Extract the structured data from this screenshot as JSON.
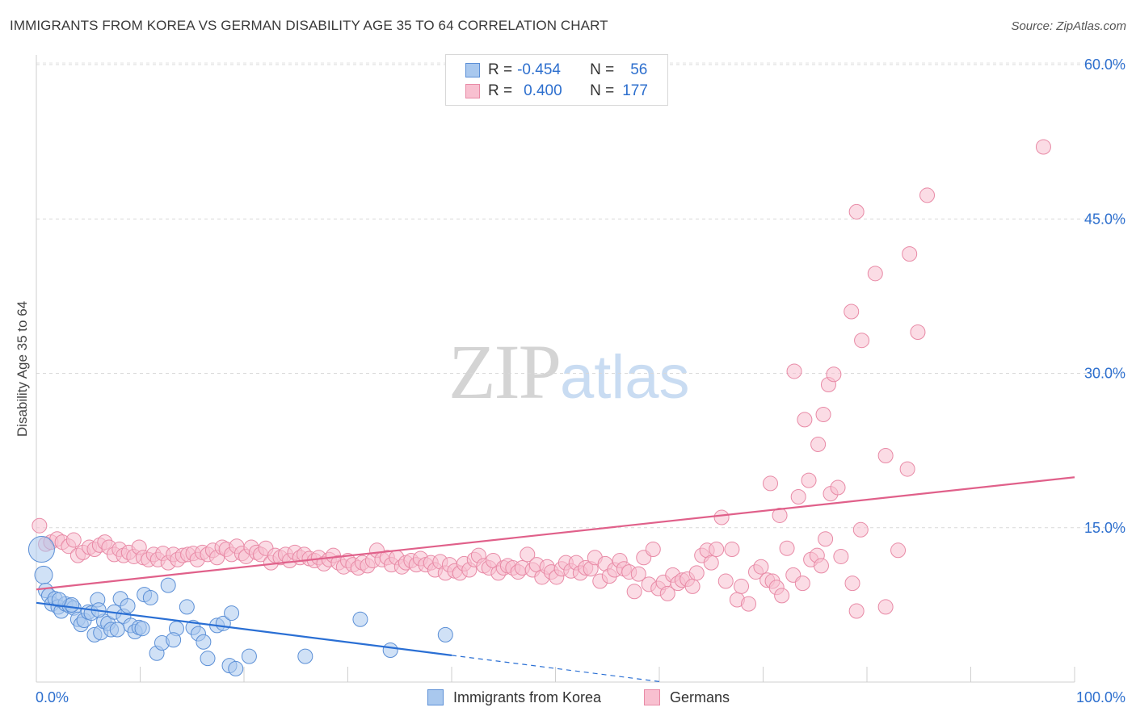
{
  "title": "IMMIGRANTS FROM KOREA VS GERMAN DISABILITY AGE 35 TO 64 CORRELATION CHART",
  "source": "Source: ZipAtlas.com",
  "watermark": {
    "zip": "ZIP",
    "atlas": "atlas"
  },
  "legend": {
    "rows": [
      {
        "r_label": "R =",
        "r_value": "-0.454",
        "n_label": "N =",
        "n_value": "56",
        "color": "#a9c8ee",
        "border": "#5b8fd6"
      },
      {
        "r_label": "R =",
        "r_value": "0.400",
        "n_label": "N =",
        "n_value": "177",
        "color": "#f8c0d0",
        "border": "#e88aa6"
      }
    ]
  },
  "bottom_legend": [
    {
      "label": "Immigrants from Korea",
      "color": "#a9c8ee",
      "border": "#5b8fd6"
    },
    {
      "label": "Germans",
      "color": "#f8c0d0",
      "border": "#e88aa6"
    }
  ],
  "chart_data": {
    "type": "scatter",
    "title": "IMMIGRANTS FROM KOREA VS GERMAN DISABILITY AGE 35 TO 64 CORRELATION CHART",
    "ylabel": "Disability Age 35 to 64",
    "xlabel": "",
    "xlim": [
      0,
      100
    ],
    "ylim": [
      0,
      60
    ],
    "x_tick_labels": [
      "0.0%",
      "100.0%"
    ],
    "y_ticks": [
      15,
      30,
      45,
      60
    ],
    "y_tick_labels": [
      "15.0%",
      "30.0%",
      "45.0%",
      "60.0%"
    ],
    "grid": true,
    "accent_blue": "#2d6fce",
    "series": [
      {
        "name": "Immigrants from Korea",
        "color": "#a9c8ee",
        "stroke": "#5b8fd6",
        "trend_color": "#2a6fd4",
        "trend": {
          "x0": 0,
          "y0": 7.7,
          "x1": 40,
          "y1": 2.6,
          "dash_to_x": 60
        },
        "points": [
          [
            0.5,
            12.9
          ],
          [
            0.7,
            10.4
          ],
          [
            0.9,
            8.9
          ],
          [
            1.2,
            8.4
          ],
          [
            1.5,
            7.6
          ],
          [
            1.8,
            8.1
          ],
          [
            2.1,
            7.3
          ],
          [
            2.4,
            6.9
          ],
          [
            2.8,
            7.6
          ],
          [
            3.2,
            7.4
          ],
          [
            3.6,
            7.2
          ],
          [
            4.0,
            6.1
          ],
          [
            4.3,
            5.6
          ],
          [
            4.6,
            6.0
          ],
          [
            5.0,
            6.8
          ],
          [
            5.3,
            6.7
          ],
          [
            5.6,
            4.6
          ],
          [
            5.9,
            8.0
          ],
          [
            6.2,
            4.8
          ],
          [
            6.5,
            5.9
          ],
          [
            6.9,
            5.7
          ],
          [
            7.2,
            5.1
          ],
          [
            7.5,
            6.8
          ],
          [
            7.8,
            5.1
          ],
          [
            8.1,
            8.1
          ],
          [
            8.4,
            6.4
          ],
          [
            8.8,
            7.4
          ],
          [
            9.1,
            5.5
          ],
          [
            9.5,
            4.9
          ],
          [
            9.9,
            5.3
          ],
          [
            10.4,
            8.5
          ],
          [
            11.0,
            8.2
          ],
          [
            11.6,
            2.8
          ],
          [
            12.1,
            3.8
          ],
          [
            12.7,
            9.4
          ],
          [
            13.5,
            5.2
          ],
          [
            14.5,
            7.3
          ],
          [
            15.1,
            5.3
          ],
          [
            15.6,
            4.7
          ],
          [
            16.1,
            3.9
          ],
          [
            16.5,
            2.3
          ],
          [
            17.4,
            5.5
          ],
          [
            18.0,
            5.7
          ],
          [
            18.6,
            1.6
          ],
          [
            19.2,
            1.3
          ],
          [
            18.8,
            6.7
          ],
          [
            20.5,
            2.5
          ],
          [
            10.2,
            5.2
          ],
          [
            13.2,
            4.1
          ],
          [
            3.4,
            7.5
          ],
          [
            2.2,
            8.0
          ],
          [
            6.0,
            7.0
          ],
          [
            25.9,
            2.5
          ],
          [
            31.2,
            6.1
          ],
          [
            34.1,
            3.1
          ],
          [
            39.4,
            4.6
          ]
        ]
      },
      {
        "name": "Germans",
        "color": "#f8c0d0",
        "stroke": "#e88aa6",
        "trend_color": "#e0608a",
        "trend": {
          "x0": 0,
          "y0": 9.0,
          "x1": 100,
          "y1": 19.9
        },
        "points": [
          [
            0.3,
            15.2
          ],
          [
            0.9,
            13.4
          ],
          [
            1.4,
            13.6
          ],
          [
            2.0,
            13.9
          ],
          [
            2.5,
            13.6
          ],
          [
            3.1,
            13.2
          ],
          [
            3.6,
            13.8
          ],
          [
            4.0,
            12.3
          ],
          [
            4.5,
            12.6
          ],
          [
            5.1,
            13.1
          ],
          [
            5.6,
            12.9
          ],
          [
            6.1,
            13.3
          ],
          [
            6.6,
            13.6
          ],
          [
            7.0,
            13.1
          ],
          [
            7.5,
            12.4
          ],
          [
            8.0,
            12.9
          ],
          [
            8.4,
            12.3
          ],
          [
            8.9,
            12.6
          ],
          [
            9.4,
            12.2
          ],
          [
            9.9,
            13.1
          ],
          [
            10.3,
            12.1
          ],
          [
            10.8,
            11.9
          ],
          [
            11.3,
            12.4
          ],
          [
            11.7,
            11.9
          ],
          [
            12.2,
            12.5
          ],
          [
            12.7,
            11.6
          ],
          [
            13.2,
            12.4
          ],
          [
            13.6,
            11.9
          ],
          [
            14.1,
            12.3
          ],
          [
            14.6,
            12.4
          ],
          [
            15.1,
            12.5
          ],
          [
            15.5,
            11.9
          ],
          [
            16.0,
            12.6
          ],
          [
            16.5,
            12.4
          ],
          [
            17.0,
            12.8
          ],
          [
            17.4,
            12.1
          ],
          [
            17.9,
            13.1
          ],
          [
            18.3,
            12.9
          ],
          [
            18.8,
            12.4
          ],
          [
            19.3,
            13.2
          ],
          [
            19.8,
            12.5
          ],
          [
            20.2,
            12.2
          ],
          [
            20.7,
            13.1
          ],
          [
            21.2,
            12.6
          ],
          [
            21.6,
            12.4
          ],
          [
            22.1,
            13.0
          ],
          [
            22.6,
            11.6
          ],
          [
            23.0,
            12.3
          ],
          [
            23.5,
            12.1
          ],
          [
            24.0,
            12.4
          ],
          [
            24.4,
            11.8
          ],
          [
            24.9,
            12.6
          ],
          [
            25.4,
            12.1
          ],
          [
            25.8,
            12.4
          ],
          [
            26.3,
            12.0
          ],
          [
            26.8,
            11.8
          ],
          [
            27.2,
            12.1
          ],
          [
            27.7,
            11.5
          ],
          [
            28.2,
            11.9
          ],
          [
            28.6,
            12.3
          ],
          [
            29.1,
            11.6
          ],
          [
            29.6,
            11.2
          ],
          [
            30.0,
            11.8
          ],
          [
            30.5,
            11.4
          ],
          [
            31.0,
            11.1
          ],
          [
            31.4,
            11.6
          ],
          [
            31.9,
            11.3
          ],
          [
            32.4,
            11.8
          ],
          [
            32.8,
            12.8
          ],
          [
            33.3,
            11.9
          ],
          [
            33.8,
            12.1
          ],
          [
            34.2,
            11.4
          ],
          [
            34.7,
            12.1
          ],
          [
            35.2,
            11.2
          ],
          [
            35.6,
            11.6
          ],
          [
            36.1,
            11.8
          ],
          [
            36.6,
            11.4
          ],
          [
            37.0,
            12.0
          ],
          [
            37.5,
            11.4
          ],
          [
            38.0,
            11.6
          ],
          [
            38.4,
            10.9
          ],
          [
            38.9,
            11.7
          ],
          [
            39.4,
            10.6
          ],
          [
            39.8,
            11.4
          ],
          [
            40.3,
            10.8
          ],
          [
            40.8,
            10.6
          ],
          [
            41.2,
            11.5
          ],
          [
            41.7,
            10.9
          ],
          [
            42.2,
            11.9
          ],
          [
            42.6,
            12.3
          ],
          [
            43.1,
            11.3
          ],
          [
            43.6,
            11.1
          ],
          [
            44.0,
            11.8
          ],
          [
            44.5,
            10.6
          ],
          [
            45.0,
            11.1
          ],
          [
            45.4,
            11.3
          ],
          [
            45.9,
            11.1
          ],
          [
            46.4,
            10.7
          ],
          [
            46.8,
            11.1
          ],
          [
            47.3,
            12.4
          ],
          [
            47.8,
            10.9
          ],
          [
            48.2,
            11.4
          ],
          [
            48.7,
            10.2
          ],
          [
            49.2,
            11.2
          ],
          [
            49.6,
            10.7
          ],
          [
            50.1,
            10.2
          ],
          [
            50.6,
            11.0
          ],
          [
            51.0,
            11.6
          ],
          [
            51.5,
            10.8
          ],
          [
            52.0,
            11.6
          ],
          [
            52.4,
            10.6
          ],
          [
            52.9,
            11.1
          ],
          [
            53.4,
            11.0
          ],
          [
            53.8,
            12.1
          ],
          [
            54.3,
            9.8
          ],
          [
            54.8,
            11.5
          ],
          [
            55.2,
            10.3
          ],
          [
            55.7,
            10.9
          ],
          [
            56.2,
            11.8
          ],
          [
            56.6,
            11.0
          ],
          [
            57.1,
            10.7
          ],
          [
            57.6,
            8.8
          ],
          [
            58.0,
            10.5
          ],
          [
            58.5,
            12.1
          ],
          [
            59.0,
            9.5
          ],
          [
            59.4,
            12.9
          ],
          [
            59.9,
            9.1
          ],
          [
            60.4,
            9.7
          ],
          [
            60.8,
            8.6
          ],
          [
            61.3,
            10.4
          ],
          [
            61.8,
            9.6
          ],
          [
            62.2,
            9.9
          ],
          [
            62.7,
            10.0
          ],
          [
            63.2,
            9.3
          ],
          [
            63.6,
            10.6
          ],
          [
            64.1,
            12.3
          ],
          [
            64.6,
            12.8
          ],
          [
            65.0,
            11.6
          ],
          [
            65.5,
            12.9
          ],
          [
            66.0,
            16.0
          ],
          [
            66.4,
            9.8
          ],
          [
            67.0,
            12.9
          ],
          [
            67.5,
            8.0
          ],
          [
            67.9,
            9.3
          ],
          [
            68.6,
            7.6
          ],
          [
            69.3,
            10.7
          ],
          [
            69.8,
            11.2
          ],
          [
            70.4,
            9.9
          ],
          [
            70.7,
            19.3
          ],
          [
            70.9,
            9.8
          ],
          [
            71.3,
            9.2
          ],
          [
            71.8,
            8.4
          ],
          [
            71.6,
            16.2
          ],
          [
            72.3,
            13.0
          ],
          [
            72.9,
            10.4
          ],
          [
            73.4,
            18.0
          ],
          [
            73.8,
            9.6
          ],
          [
            74.4,
            19.6
          ],
          [
            74.6,
            11.9
          ],
          [
            75.2,
            12.3
          ],
          [
            75.6,
            11.3
          ],
          [
            76.0,
            13.9
          ],
          [
            76.5,
            18.3
          ],
          [
            77.2,
            18.9
          ],
          [
            77.5,
            12.2
          ],
          [
            78.6,
            9.6
          ],
          [
            79.0,
            6.9
          ],
          [
            79.4,
            14.8
          ],
          [
            81.8,
            7.3
          ],
          [
            83.0,
            12.8
          ],
          [
            81.8,
            22.0
          ],
          [
            83.9,
            20.7
          ],
          [
            74.0,
            25.5
          ],
          [
            75.3,
            23.1
          ],
          [
            75.8,
            26.0
          ],
          [
            76.3,
            28.9
          ],
          [
            76.8,
            29.9
          ],
          [
            73.0,
            30.2
          ],
          [
            78.5,
            36.0
          ],
          [
            79.5,
            33.2
          ],
          [
            80.8,
            39.7
          ],
          [
            84.1,
            41.6
          ],
          [
            84.9,
            34.0
          ],
          [
            79.0,
            45.7
          ],
          [
            85.8,
            47.3
          ],
          [
            97.0,
            52.0
          ]
        ]
      }
    ]
  }
}
